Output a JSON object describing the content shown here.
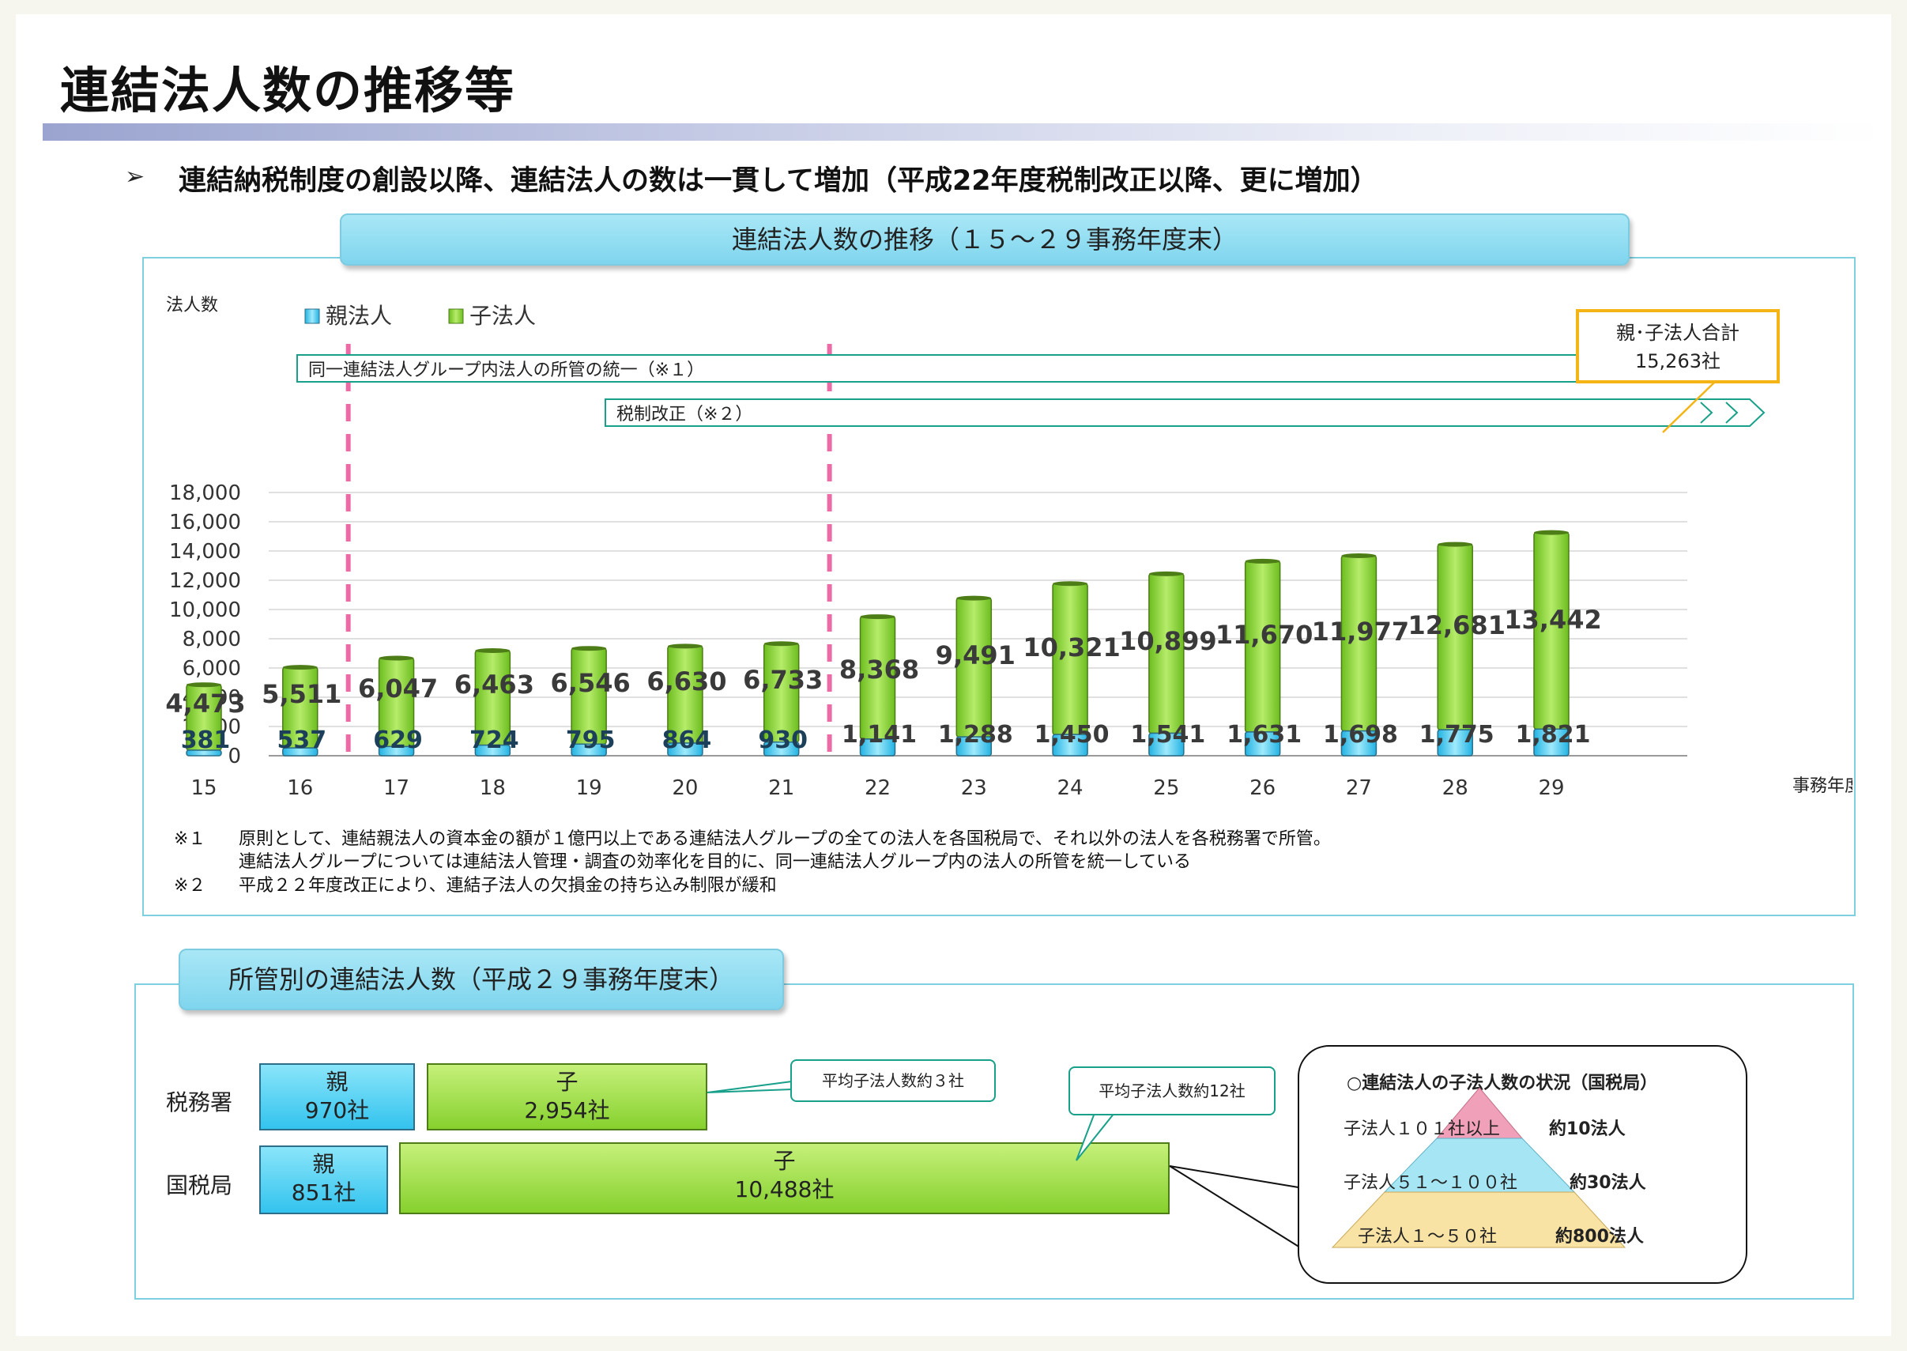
{
  "page_title": "連結法人数の推移等",
  "headline": "連結納税制度の創設以降、連結法人の数は一貫して増加（平成22年度税制改正以降、更に増加）",
  "headline_marker": "➢",
  "chart_banner": "連結法人数の推移（１５～２９事務年度末）",
  "chart_data": {
    "type": "bar",
    "stacked": true,
    "ylabel": "法人数",
    "xlabel": "事務年度",
    "ylim": [
      0,
      18000
    ],
    "yticks": [
      0,
      2000,
      4000,
      6000,
      8000,
      10000,
      12000,
      14000,
      16000,
      18000
    ],
    "grid": true,
    "legend_position": "top-left",
    "categories": [
      "15",
      "16",
      "17",
      "18",
      "19",
      "20",
      "21",
      "22",
      "23",
      "24",
      "25",
      "26",
      "27",
      "28",
      "29"
    ],
    "series": [
      {
        "name": "親法人",
        "color": "#33c3ee",
        "values": [
          381,
          537,
          629,
          724,
          795,
          864,
          930,
          1141,
          1288,
          1450,
          1541,
          1631,
          1698,
          1775,
          1821
        ],
        "labels": [
          "381",
          "537",
          "629",
          "724",
          "795",
          "864",
          "930",
          "1,141",
          "1,288",
          "1,450",
          "1,541",
          "1,631",
          "1,698",
          "1,775",
          "1,821"
        ]
      },
      {
        "name": "子法人",
        "color": "#86d12e",
        "values": [
          4473,
          5511,
          6047,
          6463,
          6546,
          6630,
          6733,
          8368,
          9491,
          10321,
          10899,
          11670,
          11977,
          12681,
          13442
        ],
        "labels": [
          "4,473",
          "5,511",
          "6,047",
          "6,463",
          "6,546",
          "6,630",
          "6,733",
          "8,368",
          "9,491",
          "10,321",
          "10,899",
          "11,670",
          "11,977",
          "12,681",
          "13,442"
        ]
      }
    ],
    "annotations": {
      "arrow1": "同一連結法人グループ内法人の所管の統一（※１）",
      "arrow2": "税制改正（※２）",
      "total_label_1": "親･子法人合計",
      "total_label_2": "15,263社"
    }
  },
  "footnotes": {
    "n1_mark": "※１",
    "n1_line1": "原則として、連結親法人の資本金の額が１億円以上である連結法人グループの全ての法人を各国税局で、それ以外の法人を各税務署で所管。",
    "n1_line2": "連結法人グループについては連結法人管理・調査の効率化を目的に、同一連結法人グループ内の法人の所管を統一している",
    "n2_mark": "※２",
    "n2_line": "平成２２年度改正により、連結子法人の欠損金の持ち込み制限が緩和"
  },
  "jurisdiction": {
    "banner": "所管別の連結法人数（平成２９事務年度末）",
    "rows": [
      {
        "label": "税務署",
        "parent_title": "親",
        "parent_count": "970社",
        "child_title": "子",
        "child_count": "2,954社",
        "callout": "平均子法人数約３社"
      },
      {
        "label": "国税局",
        "parent_title": "親",
        "parent_count": "851社",
        "child_title": "子",
        "child_count": "10,488社",
        "callout": "平均子法人数約12社"
      }
    ],
    "pyramid": {
      "title": "○連結法人の子法人数の状況（国税局）",
      "levels": [
        {
          "range": "子法人１０１社以上",
          "count": "約10法人",
          "color": "#f0a0b8"
        },
        {
          "range": "子法人５１～１００社",
          "count": "約30法人",
          "color": "#a6e6f4"
        },
        {
          "range": "子法人１～５０社",
          "count": "約800法人",
          "color": "#f8e2a4"
        }
      ]
    }
  }
}
